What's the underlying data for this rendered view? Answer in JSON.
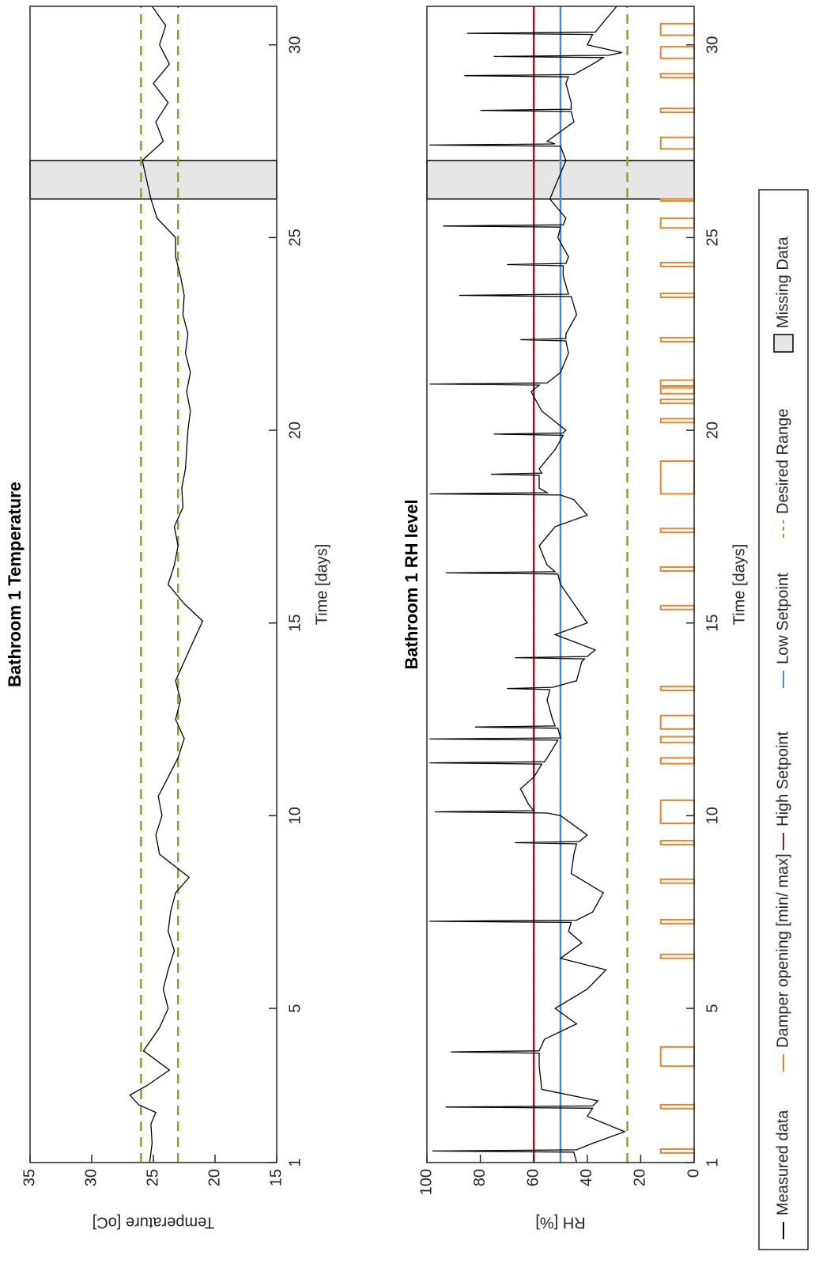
{
  "chart_data": [
    {
      "type": "line",
      "title": "Bathroom 1 Temperature",
      "xlabel": "Time [days]",
      "ylabel": "Temperature [oC]",
      "xlim": [
        1,
        31
      ],
      "xticks": [
        1,
        5,
        10,
        15,
        20,
        25,
        30
      ],
      "ylim": [
        15,
        35
      ],
      "yticks": [
        15,
        20,
        25,
        30,
        35
      ],
      "series": [
        {
          "name": "Measured data",
          "color": "#000000",
          "x": [
            1,
            1.5,
            2,
            2.3,
            2.5,
            2.75,
            3,
            3.4,
            3.9,
            4.5,
            5,
            5.5,
            6,
            6.5,
            7,
            7.5,
            8,
            8.4,
            9,
            9.5,
            10,
            10.5,
            11,
            11.5,
            12,
            12.5,
            13,
            13.5,
            14,
            14.5,
            15.05,
            15.5,
            16,
            16.5,
            17,
            17.5,
            18,
            18.5,
            19,
            19.5,
            20,
            20.5,
            21,
            21.5,
            22,
            22.5,
            23,
            23.5,
            24,
            24.5,
            25,
            25.5,
            26,
            27,
            27.5,
            28,
            28.5,
            29,
            29.5,
            30,
            30.5,
            31
          ],
          "values": [
            25.3,
            25.1,
            25.2,
            24.8,
            26.2,
            26.9,
            25.5,
            23.7,
            25.8,
            24.5,
            23.8,
            24.2,
            23.8,
            23.3,
            23.8,
            23.6,
            23.2,
            22.1,
            24.5,
            24.8,
            24.3,
            24.6,
            23.8,
            23.0,
            22.5,
            23.2,
            22.8,
            23.2,
            22.5,
            21.8,
            21.0,
            22.5,
            23.8,
            23.3,
            23.0,
            23.3,
            22.6,
            22.7,
            22.4,
            22.3,
            22.2,
            22.0,
            22.3,
            22.0,
            22.4,
            22.2,
            22.6,
            22.5,
            22.8,
            23.2,
            23.2,
            24.7,
            25.2,
            25.9,
            24.2,
            24.8,
            23.8,
            25.0,
            23.7,
            24.5,
            24.0,
            25.1
          ]
        }
      ],
      "reference_lines": [
        {
          "name": "Desired Range",
          "color": "#77ac30",
          "style": "dashed",
          "values": [
            23,
            26
          ]
        }
      ],
      "missing_ranges": [
        {
          "name": "Missing Data",
          "color": "#e6e6e6",
          "x": [
            26,
            27
          ]
        }
      ]
    },
    {
      "type": "line",
      "title": "Bathroom 1 RH level",
      "xlabel": "Time [days]",
      "ylabel": "RH [%]",
      "xlim": [
        1,
        31
      ],
      "xticks": [
        1,
        5,
        10,
        15,
        20,
        25,
        30
      ],
      "ylim": [
        0,
        100
      ],
      "yticks": [
        0,
        20,
        40,
        60,
        80,
        100
      ],
      "series": [
        {
          "name": "Measured data",
          "color": "#000000",
          "x": [
            1,
            1.27,
            1.3,
            1.33,
            1.5,
            1.8,
            2.2,
            2.41,
            2.44,
            2.47,
            2.6,
            2.9,
            3.5,
            3.84,
            3.87,
            3.9,
            4.2,
            4.6,
            5,
            5.5,
            6,
            6.3,
            6.7,
            7.0,
            7.23,
            7.26,
            7.29,
            7.5,
            8,
            8.5,
            9,
            9.27,
            9.3,
            9.33,
            9.5,
            10,
            10.07,
            10.1,
            10.13,
            10.3,
            10.7,
            11,
            11.34,
            11.37,
            11.4,
            11.5,
            11.96,
            11.99,
            12.02,
            12.27,
            12.3,
            12.33,
            12.5,
            13,
            13.27,
            13.3,
            13.33,
            13.5,
            14,
            14.07,
            14.1,
            14.13,
            14.3,
            14.7,
            15,
            15.5,
            16,
            16.27,
            16.3,
            16.33,
            16.5,
            17,
            17.5,
            17.8,
            18.2,
            18.32,
            18.35,
            18.38,
            18.5,
            18.83,
            18.86,
            18.89,
            19,
            19.5,
            19.87,
            19.9,
            19.93,
            20,
            20.5,
            21,
            21.17,
            21.2,
            21.23,
            21.5,
            22,
            22.32,
            22.35,
            22.38,
            22.5,
            23,
            23.47,
            23.5,
            23.53,
            24,
            24.27,
            24.3,
            24.33,
            24.5,
            25,
            25.27,
            25.3,
            25.33,
            25.5,
            26,
            27,
            27.37,
            27.4,
            27.43,
            27.5,
            28,
            28.27,
            28.3,
            28.33,
            28.5,
            29,
            29.17,
            29.2,
            29.23,
            29.5,
            29.67,
            29.7,
            29.73,
            29.8,
            30,
            30.27,
            30.3,
            30.33,
            30.5,
            31
          ],
          "values": [
            44,
            45,
            98,
            44,
            38,
            26,
            40,
            38,
            93,
            38,
            36,
            57,
            58,
            58,
            91,
            58,
            56,
            44,
            52,
            40,
            33,
            50,
            42,
            47,
            46,
            99,
            44,
            38,
            34,
            46,
            45,
            44,
            67,
            43,
            40,
            50,
            55,
            97,
            60,
            62,
            65,
            60,
            57,
            99,
            56,
            55,
            51,
            99,
            50,
            51,
            82,
            52,
            53,
            55,
            54,
            70,
            53,
            44,
            42,
            41,
            67,
            40,
            37,
            52,
            40,
            45,
            50,
            51,
            93,
            52,
            55,
            58,
            52,
            40,
            45,
            50,
            99,
            55,
            58,
            58,
            76,
            57,
            58,
            52,
            49,
            75,
            49,
            48,
            57,
            61,
            58,
            99,
            55,
            50,
            47,
            48,
            65,
            48,
            48,
            44,
            46,
            88,
            47,
            49,
            49,
            70,
            48,
            47,
            51,
            50,
            94,
            49,
            48,
            54,
            48,
            50,
            99,
            52,
            55,
            45,
            46,
            80,
            46,
            46,
            48,
            47,
            86,
            45,
            38,
            34,
            75,
            32,
            27,
            40,
            38,
            85,
            37,
            35,
            29
          ]
        }
      ],
      "damper": {
        "name": "Damper opening [min/ max]",
        "color": "#e8842a",
        "level": 12.5,
        "pulses": [
          [
            1.25,
            1.35
          ],
          [
            2.4,
            2.5
          ],
          [
            3.5,
            4.0
          ],
          [
            6.3,
            6.4
          ],
          [
            7.2,
            7.3
          ],
          [
            8.25,
            8.35
          ],
          [
            9.25,
            9.35
          ],
          [
            9.8,
            10.4
          ],
          [
            11.35,
            11.5
          ],
          [
            11.9,
            12.05
          ],
          [
            12.25,
            12.6
          ],
          [
            13.25,
            13.35
          ],
          [
            15.35,
            15.45
          ],
          [
            16.35,
            16.45
          ],
          [
            17.35,
            17.45
          ],
          [
            18.35,
            19.2
          ],
          [
            20.2,
            20.3
          ],
          [
            20.7,
            20.8
          ],
          [
            20.95,
            21.1
          ],
          [
            21.15,
            21.3
          ],
          [
            22.3,
            22.4
          ],
          [
            23.45,
            23.55
          ],
          [
            24.25,
            24.35
          ],
          [
            25.25,
            25.5
          ],
          [
            25.95,
            26.0
          ],
          [
            27.3,
            27.6
          ],
          [
            28.25,
            28.35
          ],
          [
            29.15,
            29.25
          ],
          [
            29.65,
            29.95
          ],
          [
            30.25,
            30.55
          ]
        ]
      },
      "reference_lines": [
        {
          "name": "High Setpoint",
          "color": "#a2142f",
          "style": "solid",
          "values": [
            60
          ]
        },
        {
          "name": "Low Setpoint",
          "color": "#3d8fd1",
          "style": "solid",
          "values": [
            50
          ]
        },
        {
          "name": "Desired Range",
          "color": "#77ac30",
          "style": "dashed",
          "values": [
            25,
            60
          ]
        }
      ],
      "missing_ranges": [
        {
          "name": "Missing Data",
          "color": "#e6e6e6",
          "x": [
            26,
            27
          ]
        }
      ],
      "legend": "bottom"
    }
  ]
}
